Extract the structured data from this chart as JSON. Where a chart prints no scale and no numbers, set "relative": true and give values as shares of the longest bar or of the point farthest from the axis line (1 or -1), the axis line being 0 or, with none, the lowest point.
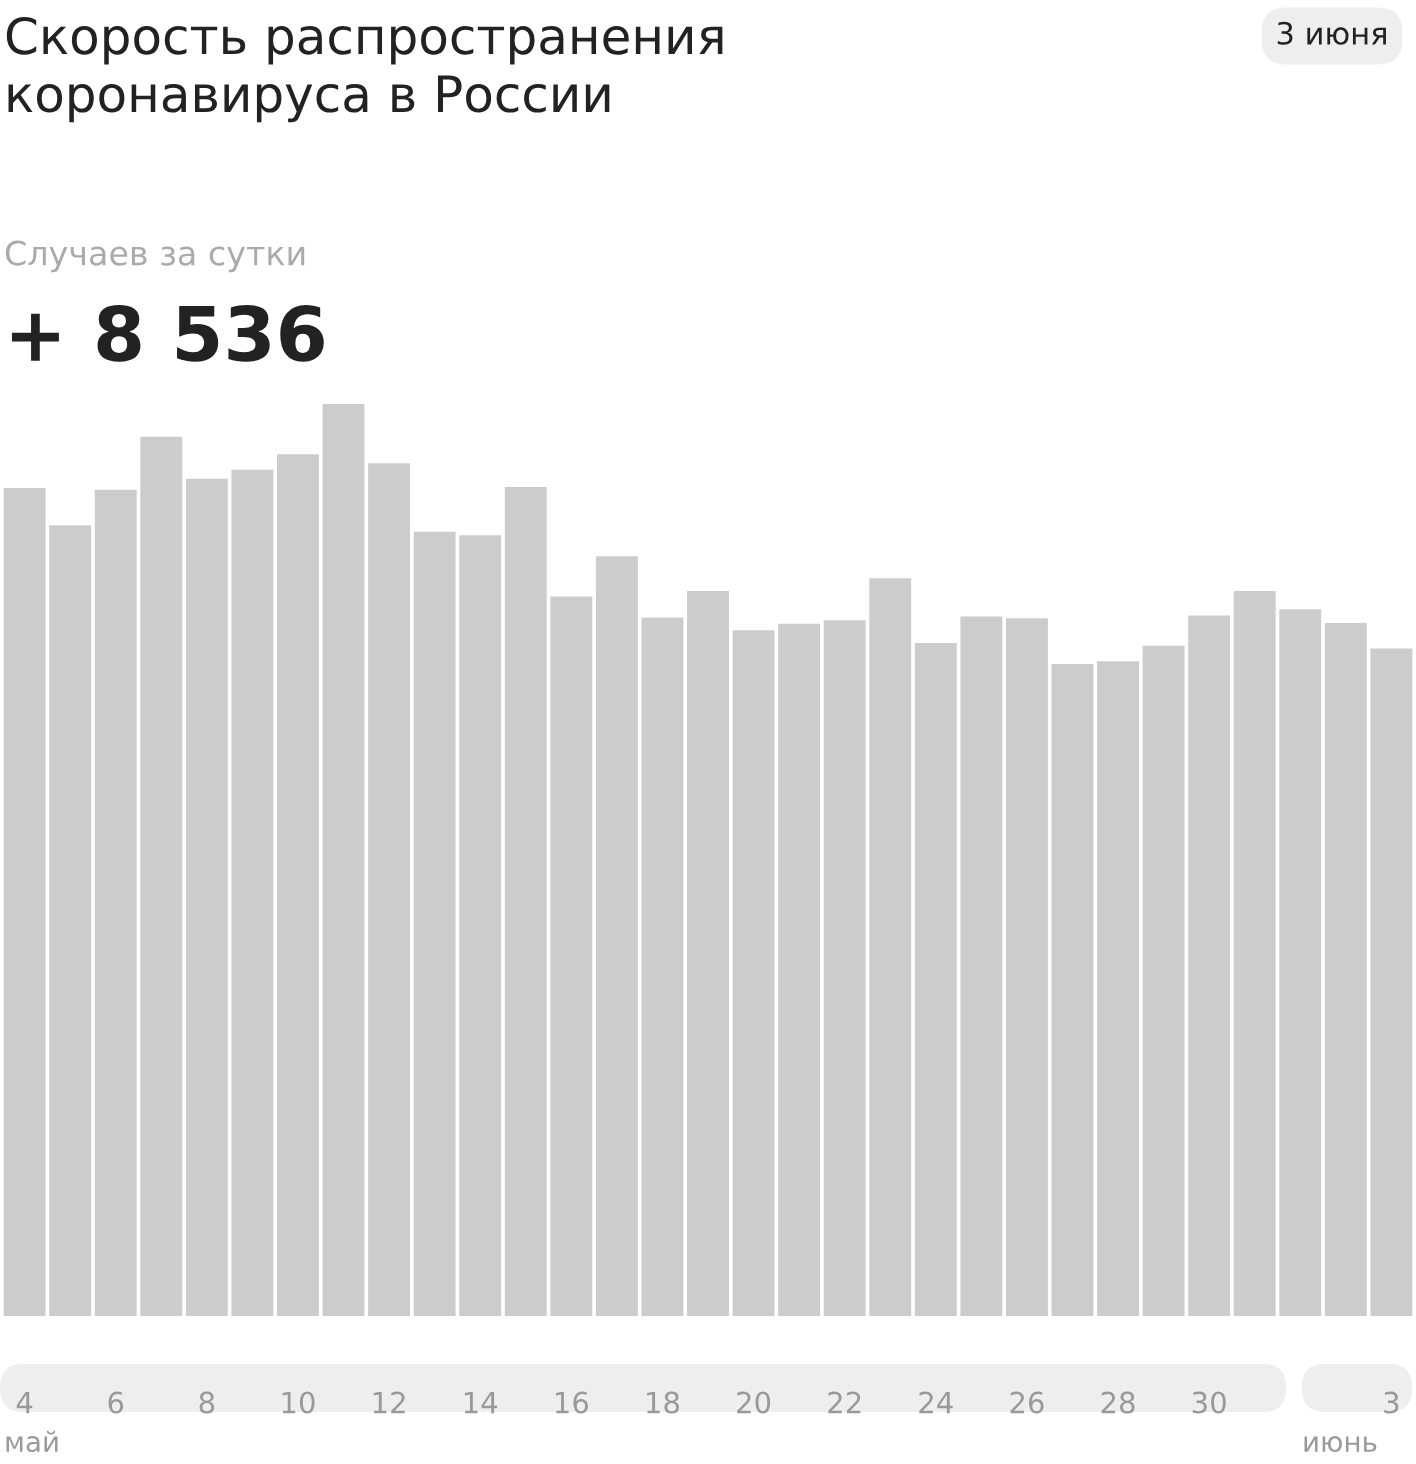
{
  "chart_data": {
    "type": "bar",
    "title": "Скорость распространения\nкоронавируса в России",
    "subtitle": "Случаев за сутки",
    "annotations": [
      "+ 8 536",
      "3 июня",
      "май",
      "июнь"
    ],
    "relative": true,
    "color": "#cccccc",
    "grid": false,
    "legend": false,
    "categories": [
      "4",
      null,
      "6",
      null,
      "8",
      null,
      "10",
      null,
      "12",
      null,
      "14",
      null,
      "16",
      null,
      "18",
      null,
      "20",
      null,
      "22",
      null,
      "24",
      null,
      "26",
      null,
      "28",
      null,
      "30",
      null,
      null,
      null,
      "3"
    ],
    "values": [
      0.908,
      0.867,
      0.906,
      0.964,
      0.918,
      0.928,
      0.945,
      1,
      0.935,
      0.86,
      0.856,
      0.909,
      0.789,
      0.833,
      0.766,
      0.795,
      0.752,
      0.759,
      0.763,
      0.809,
      0.738,
      0.767,
      0.765,
      0.715,
      0.718,
      0.735,
      0.768,
      0.795,
      0.775,
      0.76,
      0.732
    ]
  }
}
